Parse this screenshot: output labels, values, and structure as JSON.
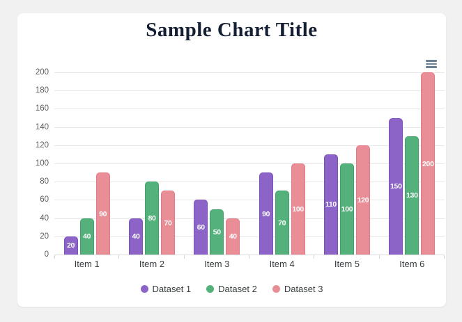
{
  "page": {
    "background_color": "#f1f1f1",
    "card_color": "#ffffff",
    "title_color": "#151f33"
  },
  "toolbar": {
    "menu_icon": "hamburger-menu-icon",
    "menu_icon_color": "#6e8192"
  },
  "chart_data": {
    "type": "bar",
    "title": "Sample Chart Title",
    "categories": [
      "Item 1",
      "Item 2",
      "Item 3",
      "Item 4",
      "Item 5",
      "Item 6"
    ],
    "series": [
      {
        "name": "Dataset 1",
        "color": "#8c64c8",
        "border_color": "#7b51bb",
        "values": [
          20,
          40,
          60,
          90,
          110,
          150
        ]
      },
      {
        "name": "Dataset 2",
        "color": "#55b17c",
        "border_color": "#40a169",
        "values": [
          40,
          80,
          50,
          70,
          100,
          130
        ]
      },
      {
        "name": "Dataset 3",
        "color": "#e98e97",
        "border_color": "#e27a85",
        "values": [
          90,
          70,
          40,
          100,
          120,
          200
        ]
      }
    ],
    "ylim": [
      0,
      200
    ],
    "ytick_step": 20,
    "grid": true,
    "data_labels": "white values centered inside bars",
    "legend_position": "bottom",
    "axis_text_color": "#5c5c5c",
    "category_text_color": "#373d3f"
  }
}
